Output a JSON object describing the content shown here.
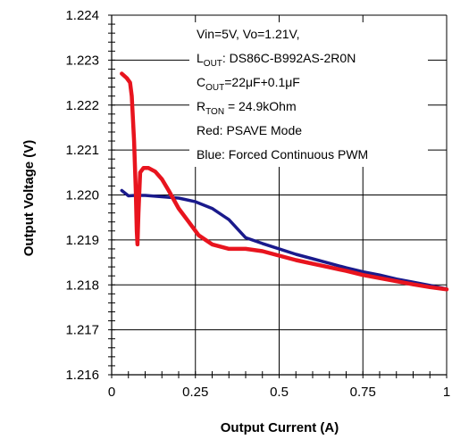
{
  "chart_data": {
    "type": "line",
    "xlabel": "Output Current (A)",
    "ylabel": "Output Voltage (V)",
    "xlim": [
      0,
      1
    ],
    "ylim": [
      1.216,
      1.224
    ],
    "xticks": [
      "0",
      "0.25",
      "0.5",
      "0.75",
      "1"
    ],
    "xtick_values": [
      0,
      0.25,
      0.5,
      0.75,
      1
    ],
    "yticks": [
      "1.216",
      "1.217",
      "1.218",
      "1.219",
      "1.220",
      "1.221",
      "1.222",
      "1.223",
      "1.224"
    ],
    "ytick_values": [
      1.216,
      1.217,
      1.218,
      1.219,
      1.22,
      1.221,
      1.222,
      1.223,
      1.224
    ],
    "grid": true,
    "annotations": {
      "line1": "Vin=5V, Vo=1.21V,",
      "line2_main": "L",
      "line2_sub": "OUT",
      "line2_rest": ": DS86C-B992AS-2R0N",
      "line3_main": "C",
      "line3_sub": "OUT",
      "line3_rest": "=22μF+0.1μF",
      "line4_main": "R",
      "line4_sub": "TON",
      "line4_rest": " = 24.9kOhm",
      "line5": "Red: PSAVE Mode",
      "line6": "Blue: Forced Continuous PWM"
    },
    "series": [
      {
        "color": "#1a1a8c",
        "x": [
          0.03,
          0.05,
          0.07,
          0.1,
          0.15,
          0.2,
          0.25,
          0.3,
          0.35,
          0.4,
          0.45,
          0.5,
          0.55,
          0.6,
          0.65,
          0.7,
          0.75,
          0.8,
          0.85,
          0.9,
          0.95,
          1.0
        ],
        "y": [
          1.2201,
          1.21998,
          1.21999,
          1.21999,
          1.21996,
          1.21993,
          1.21985,
          1.2197,
          1.21945,
          1.21905,
          1.21892,
          1.2188,
          1.21868,
          1.21858,
          1.21848,
          1.21838,
          1.21829,
          1.21822,
          1.21813,
          1.21806,
          1.21799,
          1.21791
        ]
      },
      {
        "color": "#e8141e",
        "x": [
          0.03,
          0.045,
          0.055,
          0.06,
          0.067,
          0.072,
          0.075,
          0.077,
          0.08,
          0.085,
          0.095,
          0.11,
          0.13,
          0.15,
          0.17,
          0.2,
          0.23,
          0.26,
          0.3,
          0.35,
          0.4,
          0.45,
          0.5,
          0.55,
          0.6,
          0.65,
          0.7,
          0.75,
          0.8,
          0.85,
          0.9,
          0.95,
          1.0
        ],
        "y": [
          1.2227,
          1.2226,
          1.2225,
          1.2222,
          1.2212,
          1.2201,
          1.2192,
          1.2189,
          1.2196,
          1.2205,
          1.2206,
          1.2206,
          1.22052,
          1.22035,
          1.2201,
          1.2197,
          1.2194,
          1.2191,
          1.2189,
          1.2188,
          1.2188,
          1.21875,
          1.21865,
          1.21855,
          1.21847,
          1.21839,
          1.21831,
          1.21822,
          1.21815,
          1.21808,
          1.21801,
          1.21795,
          1.2179
        ]
      }
    ]
  }
}
